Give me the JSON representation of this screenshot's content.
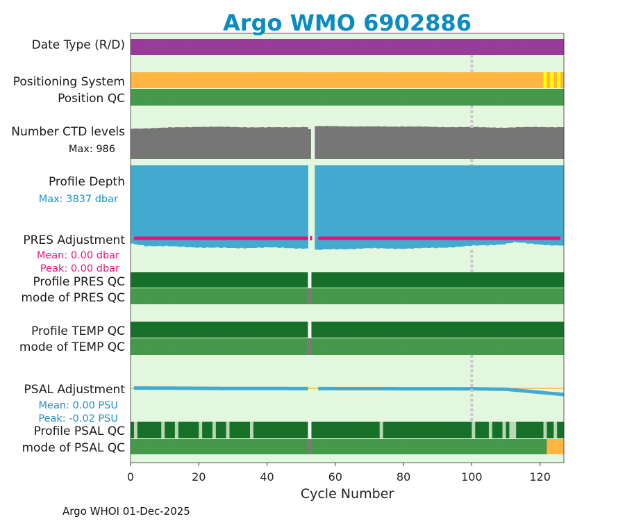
{
  "chart_data": {
    "type": "bar",
    "title": "Argo WMO 6902886",
    "xlabel": "Cycle Number",
    "xlim": [
      0,
      127
    ],
    "xticks": [
      0,
      20,
      40,
      60,
      80,
      100,
      120
    ],
    "footer": "Argo WHOI 01-Dec-2025",
    "marker_cycle": 100,
    "missing_cycles": [
      53,
      54
    ],
    "colors": {
      "background": "#e3f7df",
      "date_type": "#993b99",
      "positioning": "#ffb541",
      "positioning_alt": "#ffff00",
      "qc_good": "#46994a",
      "qc_good_dark": "#167029",
      "qc_missing": "#7a7a7a",
      "qc_flag3": "#b7d9b2",
      "ctd_levels": "#767676",
      "profile_depth": "#42aacf",
      "pres_adj": "#e6127a",
      "psal_adj": "#42aacf",
      "psal_adj_zero": "#ffb541",
      "dotted_marker": "#c8c8c8"
    },
    "rows": {
      "date_type": {
        "label": "Date Type (R/D)"
      },
      "positioning": {
        "label": "Positioning System",
        "alt_cycles": [
          122,
          124,
          126
        ]
      },
      "position_qc": {
        "label": "Position QC"
      },
      "ctd_levels": {
        "label": "Number CTD levels",
        "max_text": "Max: 986",
        "max": 986,
        "anchors": [
          [
            1,
            900
          ],
          [
            10,
            925
          ],
          [
            20,
            955
          ],
          [
            30,
            950
          ],
          [
            40,
            935
          ],
          [
            52,
            950
          ],
          [
            55,
            970
          ],
          [
            60,
            975
          ],
          [
            70,
            960
          ],
          [
            80,
            965
          ],
          [
            90,
            950
          ],
          [
            100,
            945
          ],
          [
            110,
            930
          ],
          [
            120,
            950
          ],
          [
            126,
            945
          ]
        ]
      },
      "profile_depth": {
        "label": "Profile Depth",
        "max_text": "Max: 3837 dbar",
        "max": 3837,
        "anchors": [
          [
            1,
            3550
          ],
          [
            5,
            3640
          ],
          [
            10,
            3660
          ],
          [
            20,
            3710
          ],
          [
            30,
            3750
          ],
          [
            40,
            3720
          ],
          [
            52,
            3760
          ],
          [
            55,
            3837
          ],
          [
            60,
            3800
          ],
          [
            70,
            3760
          ],
          [
            80,
            3770
          ],
          [
            90,
            3740
          ],
          [
            100,
            3650
          ],
          [
            105,
            3620
          ],
          [
            110,
            3560
          ],
          [
            113,
            3480
          ],
          [
            118,
            3560
          ],
          [
            122,
            3600
          ],
          [
            126,
            3620
          ]
        ]
      },
      "pres_adjustment": {
        "label": "PRES Adjustment",
        "mean_text": "Mean: 0.00 dbar",
        "peak_text": "Peak: 0.00 dbar"
      },
      "profile_pres_qc": {
        "label": "Profile PRES QC"
      },
      "mode_pres_qc": {
        "label": "mode of PRES QC"
      },
      "profile_temp_qc": {
        "label": "Profile TEMP QC"
      },
      "mode_temp_qc": {
        "label": "mode of TEMP QC"
      },
      "psal_adjustment": {
        "label": "PSAL Adjustment",
        "mean_text": "Mean: 0.00 PSU",
        "peak_text": "Peak: -0.02 PSU",
        "anchors": [
          [
            1,
            0.001
          ],
          [
            30,
            -0.0005
          ],
          [
            60,
            -0.001
          ],
          [
            100,
            -0.0015
          ],
          [
            110,
            -0.003
          ],
          [
            127,
            -0.02
          ]
        ]
      },
      "profile_psal_qc": {
        "label": "Profile PSAL QC",
        "flag3_cycles": [
          2,
          10,
          14,
          21,
          25,
          29,
          36,
          74,
          101,
          106,
          110,
          112,
          113,
          122,
          125
        ]
      },
      "mode_psal_qc": {
        "label": "mode of PSAL QC",
        "flag3_from": 122
      }
    }
  }
}
